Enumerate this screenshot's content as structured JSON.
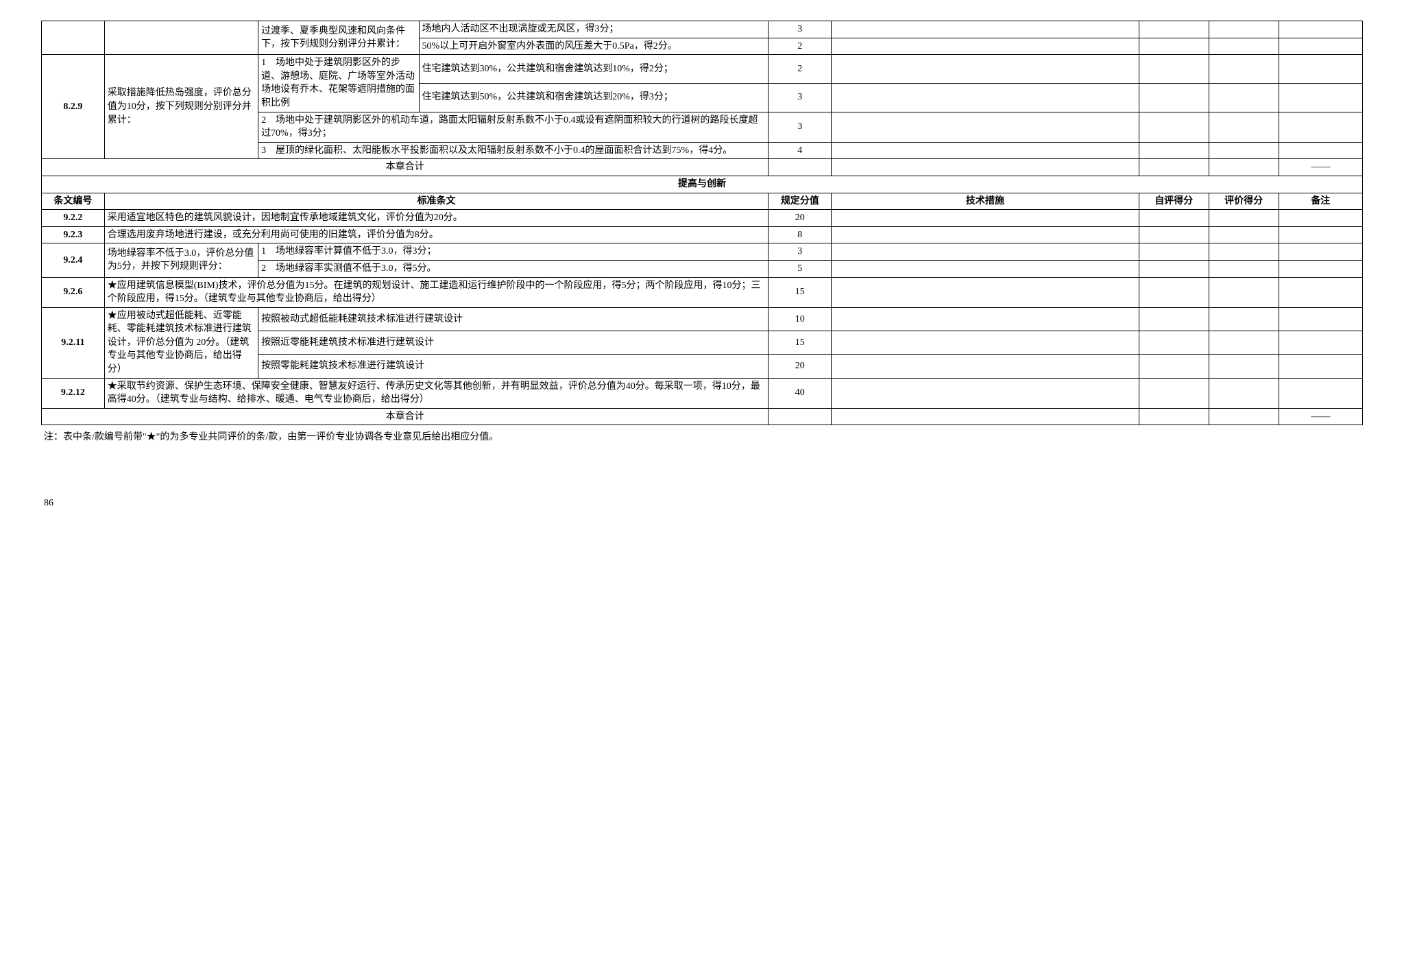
{
  "table1": {
    "row1": {
      "sub_desc": "过渡季、夏季典型风速和风向条件下，按下列规则分别评分并累计：",
      "item1": "场地内人活动区不出现涡旋或无风区，得3分；",
      "score1": "3",
      "item2": "50%以上可开启外窗室内外表面的风压差大于0.5Pa，得2分。",
      "score2": "2"
    },
    "row829": {
      "num": "8.2.9",
      "desc": "采取措施降低热岛强度，评价总分值为10分，按下列规则分别评分并累计：",
      "sub1_desc": "1　场地中处于建筑阴影区外的步道、游憩场、庭院、广场等室外活动场地设有乔木、花架等遮阴措施的面积比例",
      "sub1_item1": "住宅建筑达到30%，公共建筑和宿舍建筑达到10%，得2分；",
      "sub1_score1": "2",
      "sub1_item2": "住宅建筑达到50%，公共建筑和宿舍建筑达到20%，得3分；",
      "sub1_score2": "3",
      "sub2": "2　场地中处于建筑阴影区外的机动车道，路面太阳辐射反射系数不小于0.4或设有遮阴面积较大的行道树的路段长度超过70%，得3分；",
      "sub2_score": "3",
      "sub3": "3　屋顶的绿化面积、太阳能板水平投影面积以及太阳辐射反射系数不小于0.4的屋面面积合计达到75%，得4分。",
      "sub3_score": "4"
    },
    "subtotal": "本章合计",
    "subtotal_note": "——"
  },
  "section2_title": "提高与创新",
  "headers": {
    "num": "条文编号",
    "standard": "标准条文",
    "score": "规定分值",
    "tech": "技术措施",
    "self": "自评得分",
    "eval": "评价得分",
    "note": "备注"
  },
  "table2": {
    "row922": {
      "num": "9.2.2",
      "desc": "采用适宜地区特色的建筑风貌设计，因地制宜传承地域建筑文化，评价分值为20分。",
      "score": "20"
    },
    "row923": {
      "num": "9.2.3",
      "desc": "合理选用废弃场地进行建设，或充分利用尚可使用的旧建筑，评价分值为8分。",
      "score": "8"
    },
    "row924": {
      "num": "9.2.4",
      "desc": "场地绿容率不低于3.0，评价总分值为5分，并按下列规则评分：",
      "item1": "1　场地绿容率计算值不低于3.0，得3分；",
      "score1": "3",
      "item2": "2　场地绿容率实测值不低于3.0，得5分。",
      "score2": "5"
    },
    "row926": {
      "num": "9.2.6",
      "desc": "★应用建筑信息模型(BIM)技术，评价总分值为15分。在建筑的规划设计、施工建造和运行维护阶段中的一个阶段应用，得5分；两个阶段应用，得10分；三个阶段应用，得15分。（建筑专业与其他专业协商后，给出得分）",
      "score": "15"
    },
    "row9211": {
      "num": "9.2.11",
      "desc": "★应用被动式超低能耗、近零能耗、零能耗建筑技术标准进行建筑设计，评价总分值为 20分。（建筑专业与其他专业协商后，给出得分）",
      "item1": "按照被动式超低能耗建筑技术标准进行建筑设计",
      "score1": "10",
      "item2": "按照近零能耗建筑技术标准进行建筑设计",
      "score2": "15",
      "item3": "按照零能耗建筑技术标准进行建筑设计",
      "score3": "20"
    },
    "row9212": {
      "num": "9.2.12",
      "desc": "★采取节约资源、保护生态环境、保障安全健康、智慧友好运行、传承历史文化等其他创新，并有明显效益，评价总分值为40分。每采取一项，得10分，最高得40分。（建筑专业与结构、给排水、暖通、电气专业协商后，给出得分）",
      "score": "40"
    },
    "subtotal": "本章合计",
    "subtotal_note": "——"
  },
  "footnote": "注：表中条/款编号前带\"★\"的为多专业共同评价的条/款，由第一评价专业协调各专业意见后给出相应分值。",
  "page_number": "86"
}
